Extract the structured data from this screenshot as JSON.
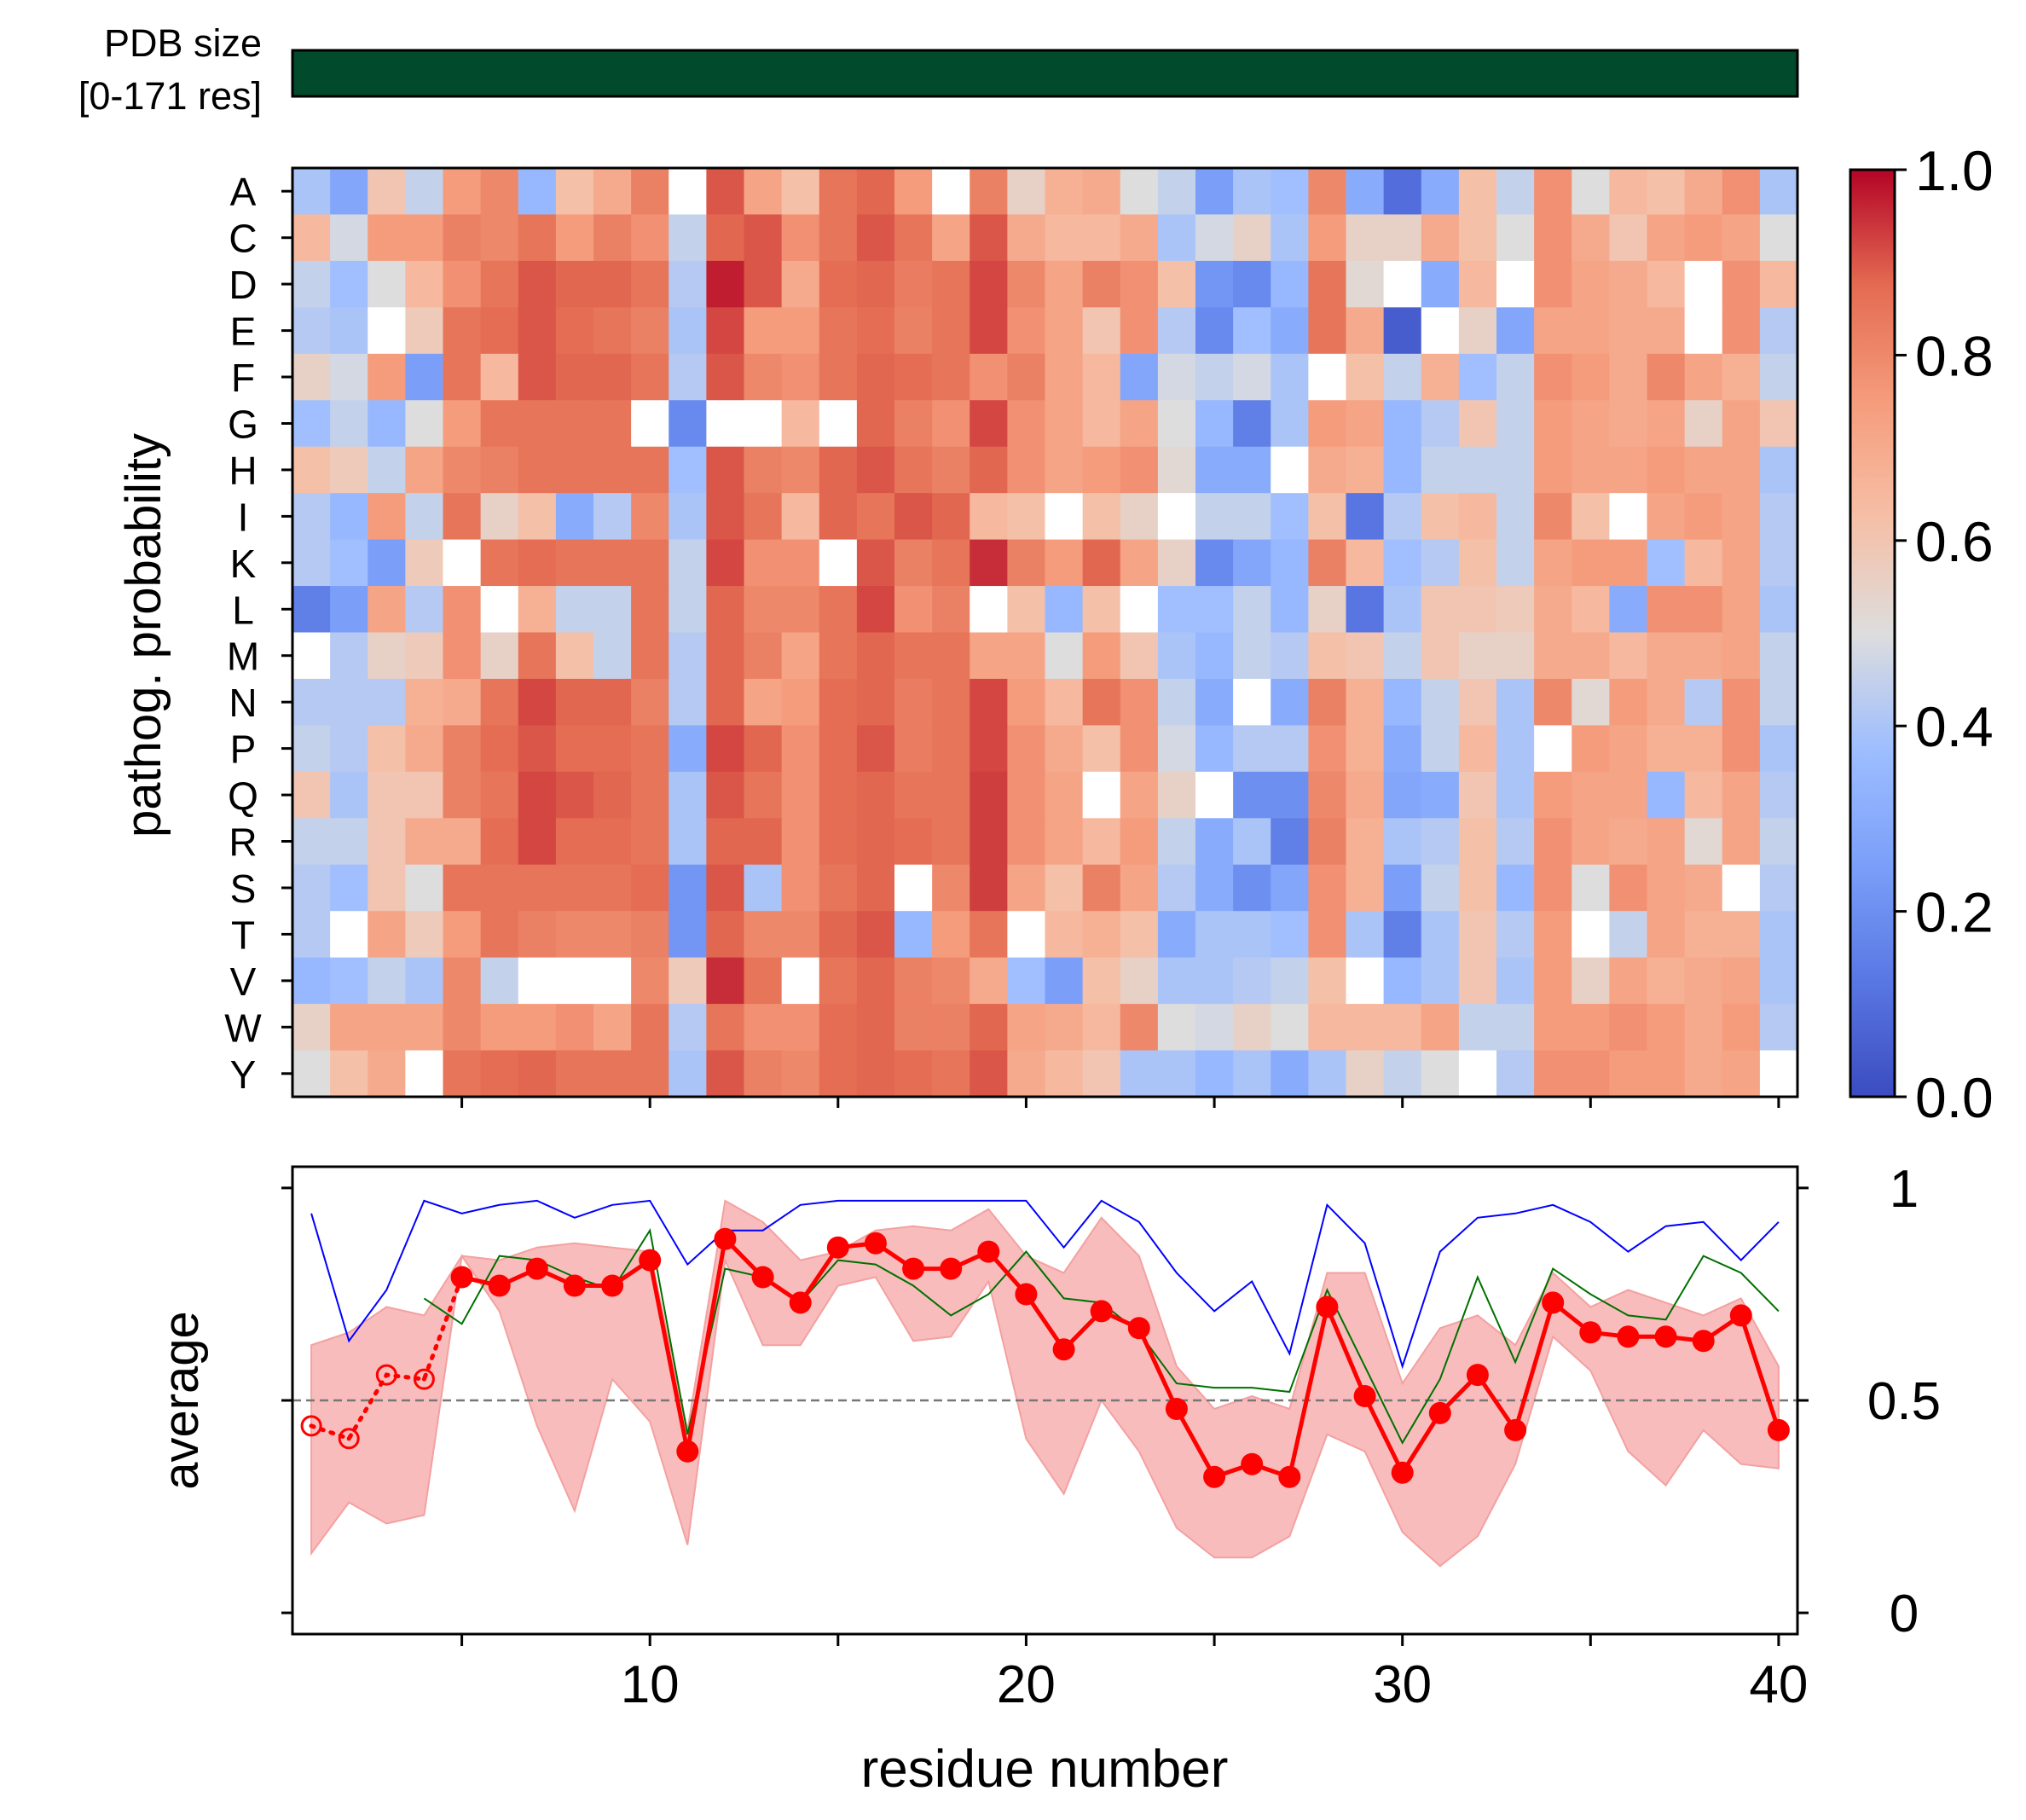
{
  "chart_data": [
    {
      "type": "bar",
      "label_lines": [
        "PDB size",
        "[0-171 res]"
      ],
      "value": 1.0,
      "color": "#024a2c"
    },
    {
      "type": "heatmap",
      "ylabel": "pathog. probability",
      "rows": [
        "A",
        "C",
        "D",
        "E",
        "F",
        "G",
        "H",
        "I",
        "K",
        "L",
        "M",
        "N",
        "P",
        "Q",
        "R",
        "S",
        "T",
        "V",
        "W",
        "Y"
      ],
      "x": [
        1,
        2,
        3,
        4,
        5,
        6,
        7,
        8,
        9,
        10,
        11,
        12,
        13,
        14,
        15,
        16,
        17,
        18,
        19,
        20,
        21,
        22,
        23,
        24,
        25,
        26,
        27,
        28,
        29,
        30,
        31,
        32,
        33,
        34,
        35,
        36,
        37,
        38,
        39,
        40
      ],
      "vmin": 0,
      "vmax": 1,
      "colormap": "coolwarm",
      "colorbar_ticks": [
        "0.0",
        "0.2",
        "0.4",
        "0.6",
        "0.8",
        "1.0"
      ],
      "missing_color": "#ffffff",
      "values": [
        [
          0.4,
          0.28,
          0.6,
          0.45,
          0.75,
          0.8,
          0.35,
          0.62,
          0.7,
          0.82,
          null,
          0.9,
          0.72,
          0.62,
          0.85,
          0.88,
          0.75,
          null,
          0.82,
          0.55,
          0.68,
          0.7,
          0.5,
          0.45,
          0.25,
          0.4,
          0.38,
          0.8,
          0.3,
          0.1,
          0.3,
          0.62,
          0.45,
          0.78,
          0.5,
          0.65,
          0.62,
          0.7,
          0.78,
          0.4
        ],
        [
          0.65,
          0.48,
          0.75,
          0.75,
          0.82,
          0.8,
          0.85,
          0.75,
          0.82,
          0.78,
          0.45,
          0.88,
          0.9,
          0.78,
          0.85,
          0.9,
          0.85,
          0.72,
          0.9,
          0.7,
          0.65,
          0.65,
          0.7,
          0.4,
          0.48,
          0.55,
          0.4,
          0.75,
          0.55,
          0.55,
          0.7,
          0.62,
          0.5,
          0.78,
          0.7,
          0.6,
          0.72,
          0.75,
          0.72,
          0.5
        ],
        [
          0.45,
          0.38,
          0.5,
          0.65,
          0.78,
          0.85,
          0.9,
          0.88,
          0.88,
          0.85,
          0.42,
          0.97,
          0.9,
          0.7,
          0.87,
          0.88,
          0.83,
          0.85,
          0.92,
          0.8,
          0.72,
          0.82,
          0.78,
          0.62,
          0.22,
          0.18,
          0.35,
          0.85,
          0.52,
          null,
          0.3,
          0.65,
          null,
          0.78,
          0.72,
          0.7,
          0.65,
          null,
          0.78,
          0.65
        ],
        [
          0.42,
          0.4,
          null,
          0.58,
          0.85,
          0.87,
          0.9,
          0.87,
          0.85,
          0.82,
          0.4,
          0.92,
          0.75,
          0.75,
          0.85,
          0.87,
          0.82,
          0.85,
          0.92,
          0.78,
          0.72,
          0.6,
          0.78,
          0.42,
          0.18,
          0.38,
          0.3,
          0.85,
          0.7,
          0.05,
          null,
          0.55,
          0.28,
          0.72,
          0.72,
          0.7,
          0.7,
          null,
          0.78,
          0.42
        ],
        [
          0.55,
          0.48,
          0.75,
          0.25,
          0.85,
          0.65,
          0.9,
          0.88,
          0.88,
          0.85,
          0.42,
          0.9,
          0.8,
          0.78,
          0.85,
          0.88,
          0.87,
          0.85,
          0.78,
          0.82,
          0.72,
          0.65,
          0.28,
          0.48,
          0.45,
          0.48,
          0.4,
          null,
          0.62,
          0.45,
          0.68,
          0.38,
          0.45,
          0.78,
          0.75,
          0.7,
          0.8,
          0.72,
          0.68,
          0.45
        ],
        [
          0.38,
          0.45,
          0.35,
          0.5,
          0.75,
          0.85,
          0.85,
          0.85,
          0.85,
          null,
          0.18,
          null,
          null,
          0.65,
          null,
          0.88,
          0.82,
          0.78,
          0.92,
          0.78,
          0.72,
          0.65,
          0.72,
          0.5,
          0.35,
          0.15,
          0.4,
          0.75,
          0.72,
          0.35,
          0.42,
          0.6,
          0.45,
          0.75,
          0.72,
          0.7,
          0.72,
          0.55,
          0.72,
          0.6
        ],
        [
          0.62,
          0.58,
          0.45,
          0.72,
          0.8,
          0.82,
          0.85,
          0.85,
          0.85,
          0.85,
          0.38,
          0.9,
          0.82,
          0.8,
          0.88,
          0.9,
          0.85,
          0.82,
          0.88,
          0.78,
          0.72,
          0.75,
          0.78,
          0.52,
          0.3,
          0.3,
          null,
          0.7,
          0.68,
          0.35,
          0.45,
          0.45,
          0.45,
          0.75,
          0.72,
          0.72,
          0.75,
          0.72,
          0.72,
          0.4
        ],
        [
          0.42,
          0.35,
          0.75,
          0.45,
          0.85,
          0.55,
          0.62,
          0.3,
          0.42,
          0.8,
          0.4,
          0.9,
          0.85,
          0.65,
          0.88,
          0.85,
          0.9,
          0.88,
          0.65,
          0.62,
          null,
          0.62,
          0.55,
          null,
          0.45,
          0.45,
          0.38,
          0.62,
          0.12,
          0.42,
          0.62,
          0.65,
          0.45,
          0.8,
          0.62,
          null,
          0.72,
          0.75,
          0.72,
          0.42
        ],
        [
          0.42,
          0.38,
          0.25,
          0.58,
          null,
          0.85,
          0.87,
          0.85,
          0.85,
          0.85,
          0.45,
          0.92,
          0.78,
          0.78,
          null,
          0.9,
          0.82,
          0.85,
          0.95,
          0.82,
          0.75,
          0.88,
          0.72,
          0.55,
          0.18,
          0.28,
          0.35,
          0.82,
          0.65,
          0.38,
          0.42,
          0.62,
          0.45,
          0.72,
          0.75,
          0.75,
          0.38,
          0.65,
          0.72,
          0.42
        ],
        [
          0.15,
          0.25,
          0.72,
          0.42,
          0.78,
          null,
          0.68,
          0.45,
          0.45,
          0.85,
          0.45,
          0.88,
          0.8,
          0.8,
          0.85,
          0.92,
          0.78,
          0.82,
          null,
          0.62,
          0.35,
          0.62,
          null,
          0.38,
          0.38,
          0.45,
          0.35,
          0.55,
          0.12,
          0.4,
          0.6,
          0.6,
          0.58,
          0.7,
          0.65,
          0.3,
          0.78,
          0.78,
          0.72,
          0.4
        ],
        [
          null,
          0.42,
          0.55,
          0.58,
          0.78,
          0.55,
          0.85,
          0.62,
          0.45,
          0.85,
          0.42,
          0.88,
          0.82,
          0.72,
          0.85,
          0.88,
          0.85,
          0.85,
          0.72,
          0.72,
          0.5,
          0.75,
          0.6,
          0.4,
          0.35,
          0.45,
          0.42,
          0.62,
          0.6,
          0.45,
          0.6,
          0.55,
          0.55,
          0.7,
          0.7,
          0.65,
          0.7,
          0.7,
          0.72,
          0.45
        ],
        [
          0.42,
          0.42,
          0.42,
          0.68,
          0.7,
          0.85,
          0.92,
          0.88,
          0.88,
          0.82,
          0.42,
          0.88,
          0.72,
          0.75,
          0.87,
          0.88,
          0.83,
          0.85,
          0.92,
          0.75,
          0.65,
          0.85,
          0.78,
          0.45,
          0.3,
          null,
          0.3,
          0.82,
          0.68,
          0.35,
          0.45,
          0.6,
          0.4,
          0.8,
          0.52,
          0.75,
          0.7,
          0.42,
          0.78,
          0.45
        ],
        [
          0.45,
          0.42,
          0.62,
          0.7,
          0.82,
          0.87,
          0.9,
          0.87,
          0.87,
          0.85,
          0.3,
          0.92,
          0.88,
          0.78,
          0.87,
          0.9,
          0.83,
          0.85,
          0.92,
          0.78,
          0.7,
          0.62,
          0.78,
          0.48,
          0.35,
          0.42,
          0.42,
          0.78,
          0.68,
          0.3,
          0.45,
          0.65,
          0.4,
          null,
          0.75,
          0.72,
          0.68,
          0.68,
          0.78,
          0.4
        ],
        [
          0.6,
          0.4,
          0.6,
          0.6,
          0.82,
          0.85,
          0.92,
          0.9,
          0.88,
          0.85,
          0.4,
          0.9,
          0.85,
          0.78,
          0.87,
          0.88,
          0.85,
          0.85,
          0.93,
          0.78,
          0.72,
          null,
          0.72,
          0.55,
          null,
          0.2,
          0.2,
          0.8,
          0.7,
          0.28,
          0.3,
          0.6,
          0.4,
          0.75,
          0.72,
          0.72,
          0.35,
          0.65,
          0.72,
          0.42
        ],
        [
          0.45,
          0.45,
          0.6,
          0.7,
          0.7,
          0.87,
          0.92,
          0.87,
          0.87,
          0.85,
          0.4,
          0.88,
          0.88,
          0.78,
          0.87,
          0.88,
          0.87,
          0.85,
          0.93,
          0.78,
          0.72,
          0.65,
          0.75,
          0.45,
          0.3,
          0.4,
          0.15,
          0.82,
          0.68,
          0.4,
          0.42,
          0.62,
          0.42,
          0.78,
          0.72,
          0.7,
          0.72,
          0.52,
          0.72,
          0.45
        ],
        [
          0.42,
          0.38,
          0.6,
          0.5,
          0.85,
          0.85,
          0.85,
          0.85,
          0.85,
          0.87,
          0.22,
          0.9,
          0.4,
          0.78,
          0.85,
          0.88,
          null,
          0.8,
          0.93,
          0.72,
          0.62,
          0.82,
          0.72,
          0.42,
          0.3,
          0.2,
          0.28,
          0.78,
          0.68,
          0.25,
          0.45,
          0.62,
          0.35,
          0.78,
          0.5,
          0.78,
          0.72,
          0.7,
          null,
          0.42
        ],
        [
          0.42,
          null,
          0.72,
          0.58,
          0.75,
          0.85,
          0.82,
          0.8,
          0.8,
          0.82,
          0.22,
          0.88,
          0.8,
          0.8,
          0.88,
          0.9,
          0.35,
          0.75,
          0.85,
          null,
          0.65,
          0.68,
          0.62,
          0.3,
          0.4,
          0.4,
          0.38,
          0.78,
          0.4,
          0.15,
          0.4,
          0.6,
          0.42,
          0.75,
          null,
          0.45,
          0.72,
          0.68,
          0.68,
          0.4
        ],
        [
          0.35,
          0.38,
          0.45,
          0.4,
          0.8,
          0.45,
          null,
          null,
          null,
          0.8,
          0.58,
          0.95,
          0.85,
          null,
          0.85,
          0.88,
          0.82,
          0.8,
          0.7,
          0.38,
          0.25,
          0.62,
          0.55,
          0.4,
          0.4,
          0.42,
          0.45,
          0.62,
          null,
          0.35,
          0.4,
          0.6,
          0.4,
          0.75,
          0.55,
          0.72,
          0.68,
          0.7,
          0.72,
          0.4
        ],
        [
          0.55,
          0.72,
          0.72,
          0.72,
          0.8,
          0.75,
          0.75,
          0.78,
          0.72,
          0.85,
          0.42,
          0.85,
          0.78,
          0.78,
          0.87,
          0.88,
          0.82,
          0.82,
          0.88,
          0.72,
          0.7,
          0.65,
          0.8,
          0.5,
          0.48,
          0.55,
          0.5,
          0.65,
          0.65,
          0.65,
          0.72,
          0.45,
          0.45,
          0.75,
          0.75,
          0.78,
          0.75,
          0.7,
          0.75,
          0.42
        ],
        [
          0.5,
          0.62,
          0.7,
          null,
          0.85,
          0.87,
          0.88,
          0.85,
          0.85,
          0.85,
          0.4,
          0.9,
          0.82,
          0.8,
          0.87,
          0.88,
          0.87,
          0.85,
          0.9,
          0.7,
          0.65,
          0.6,
          0.4,
          0.4,
          0.35,
          0.4,
          0.3,
          0.4,
          0.55,
          0.45,
          0.5,
          null,
          0.42,
          0.78,
          0.78,
          0.75,
          0.75,
          0.7,
          0.72,
          null
        ]
      ]
    },
    {
      "type": "line",
      "xlabel": "residue number",
      "ylabel": "average",
      "xlim": [
        0.5,
        40.5
      ],
      "ylim": [
        -0.05,
        1.05
      ],
      "xticks": [
        10,
        20,
        30,
        40
      ],
      "yticks": [
        0,
        0.5,
        1
      ],
      "ytick_labels": [
        "0",
        "0.5",
        "1"
      ],
      "reference_line": 0.5,
      "x": [
        1,
        2,
        3,
        4,
        5,
        6,
        7,
        8,
        9,
        10,
        11,
        12,
        13,
        14,
        15,
        16,
        17,
        18,
        19,
        20,
        21,
        22,
        23,
        24,
        25,
        26,
        27,
        28,
        29,
        30,
        31,
        32,
        33,
        34,
        35,
        36,
        37,
        38,
        39,
        40
      ],
      "series": [
        {
          "role": "max",
          "color": "#0000ff",
          "values": [
            0.94,
            0.64,
            0.76,
            0.97,
            0.94,
            0.96,
            0.97,
            0.93,
            0.96,
            0.97,
            0.82,
            0.9,
            0.9,
            0.96,
            0.97,
            0.97,
            0.97,
            0.97,
            0.97,
            0.97,
            0.86,
            0.97,
            0.92,
            0.8,
            0.71,
            0.78,
            0.61,
            0.96,
            0.87,
            0.58,
            0.85,
            0.93,
            0.94,
            0.96,
            0.92,
            0.85,
            0.91,
            0.92,
            0.83,
            0.92
          ]
        },
        {
          "role": "median",
          "color": "#007000",
          "values": [
            null,
            null,
            null,
            0.74,
            0.68,
            0.84,
            0.83,
            0.79,
            0.76,
            0.9,
            0.42,
            0.81,
            0.79,
            0.73,
            0.83,
            0.82,
            0.77,
            0.7,
            0.75,
            0.85,
            0.74,
            0.73,
            0.66,
            0.54,
            0.53,
            0.53,
            0.52,
            0.76,
            0.58,
            0.4,
            0.55,
            0.79,
            0.59,
            0.81,
            0.75,
            0.7,
            0.69,
            0.84,
            0.8,
            0.71
          ]
        },
        {
          "role": "average",
          "color": "#ff0000",
          "values": [
            0.44,
            0.41,
            0.56,
            0.55,
            0.79,
            0.77,
            0.81,
            0.77,
            0.77,
            0.83,
            0.38,
            0.88,
            0.79,
            0.73,
            0.86,
            0.87,
            0.81,
            0.81,
            0.85,
            0.75,
            0.62,
            0.71,
            0.67,
            0.48,
            0.32,
            0.35,
            0.32,
            0.72,
            0.51,
            0.33,
            0.47,
            0.56,
            0.43,
            0.73,
            0.66,
            0.65,
            0.65,
            0.64,
            0.7,
            0.43
          ]
        },
        {
          "role": "range_low",
          "color": "#f8bcbc",
          "values": [
            0.14,
            0.26,
            0.21,
            0.23,
            0.84,
            0.71,
            0.44,
            0.24,
            0.55,
            0.45,
            0.16,
            0.83,
            0.63,
            0.63,
            0.77,
            0.79,
            0.64,
            0.65,
            0.78,
            0.41,
            0.28,
            0.5,
            0.38,
            0.2,
            0.13,
            0.13,
            0.18,
            0.42,
            0.38,
            0.19,
            0.11,
            0.18,
            0.35,
            0.65,
            0.57,
            0.38,
            0.3,
            0.43,
            0.35,
            0.34
          ]
        },
        {
          "role": "range_high",
          "color": "#f8bcbc",
          "values": [
            0.63,
            0.66,
            0.72,
            0.7,
            0.84,
            0.83,
            0.86,
            0.87,
            0.86,
            0.85,
            0.43,
            0.97,
            0.92,
            0.83,
            0.85,
            0.9,
            0.91,
            0.9,
            0.95,
            0.84,
            0.8,
            0.93,
            0.84,
            0.58,
            0.48,
            0.51,
            0.48,
            0.8,
            0.8,
            0.54,
            0.67,
            0.7,
            0.63,
            0.8,
            0.72,
            0.76,
            0.73,
            0.7,
            0.74,
            0.58
          ]
        }
      ],
      "hollow_points_up_to": 4
    }
  ]
}
